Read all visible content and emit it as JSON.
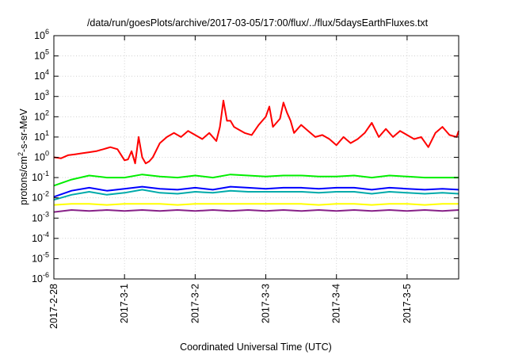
{
  "chart_data": {
    "type": "line",
    "title": "/data/run/goesPlots/archive/2017-03-05/17:00/flux/../flux/5daysEarthFluxes.txt",
    "xlabel": "Coordinated Universal Time (UTC)",
    "ylabel_parts": [
      "protons/cm",
      "2",
      "-s-sr-MeV"
    ],
    "y_scale": "log",
    "ylim_exponents": [
      -6,
      6
    ],
    "y_ticks": [
      {
        "base": "10",
        "exp": "-6",
        "value": -6
      },
      {
        "base": "10",
        "exp": "-5",
        "value": -5
      },
      {
        "base": "10",
        "exp": "-4",
        "value": -4
      },
      {
        "base": "10",
        "exp": "-3",
        "value": -3
      },
      {
        "base": "10",
        "exp": "-2",
        "value": -2
      },
      {
        "base": "10",
        "exp": "-1",
        "value": -1
      },
      {
        "base": "10",
        "exp": "0",
        "value": 0
      },
      {
        "base": "10",
        "exp": "1",
        "value": 1
      },
      {
        "base": "10",
        "exp": "2",
        "value": 2
      },
      {
        "base": "10",
        "exp": "3",
        "value": 3
      },
      {
        "base": "10",
        "exp": "4",
        "value": 4
      },
      {
        "base": "10",
        "exp": "5",
        "value": 5
      },
      {
        "base": "10",
        "exp": "6",
        "value": 6
      }
    ],
    "xlim_days": [
      0,
      5.73
    ],
    "x_ticks": [
      {
        "label": "2017-2-28",
        "day": 0
      },
      {
        "label": "2017-3-1",
        "day": 1
      },
      {
        "label": "2017-3-2",
        "day": 2
      },
      {
        "label": "2017-3-3",
        "day": 3
      },
      {
        "label": "2017-3-4",
        "day": 4
      },
      {
        "label": "2017-3-5",
        "day": 5
      }
    ],
    "grid": true,
    "series_colors": [
      "#ff0000",
      "#00ee00",
      "#00aaaa",
      "#0000ff",
      "#ffff00",
      "#882288"
    ],
    "series": [
      {
        "color": "#ff0000",
        "x": [
          0,
          0.1,
          0.2,
          0.3,
          0.4,
          0.5,
          0.6,
          0.7,
          0.75,
          0.8,
          0.9,
          1.0,
          1.05,
          1.1,
          1.15,
          1.2,
          1.25,
          1.3,
          1.35,
          1.4,
          1.5,
          1.6,
          1.7,
          1.8,
          1.9,
          2.0,
          2.1,
          2.2,
          2.3,
          2.35,
          2.4,
          2.45,
          2.5,
          2.55,
          2.6,
          2.7,
          2.8,
          2.9,
          3.0,
          3.05,
          3.1,
          3.2,
          3.25,
          3.3,
          3.35,
          3.4,
          3.5,
          3.6,
          3.7,
          3.8,
          3.9,
          4.0,
          4.1,
          4.2,
          4.3,
          4.4,
          4.5,
          4.6,
          4.7,
          4.8,
          4.9,
          5.0,
          5.1,
          5.2,
          5.3,
          5.4,
          5.5,
          5.6,
          5.7,
          5.73
        ],
        "log10_values": [
          0.0,
          -0.05,
          0.1,
          0.15,
          0.2,
          0.25,
          0.3,
          0.4,
          0.45,
          0.5,
          0.4,
          -0.15,
          -0.1,
          0.3,
          -0.3,
          1.0,
          0.0,
          -0.3,
          -0.2,
          0.0,
          0.7,
          1.0,
          1.2,
          1.0,
          1.3,
          1.1,
          0.9,
          1.2,
          0.8,
          1.5,
          2.8,
          1.8,
          1.8,
          1.5,
          1.4,
          1.2,
          1.1,
          1.6,
          2.0,
          2.5,
          1.5,
          1.9,
          2.7,
          2.2,
          1.8,
          1.2,
          1.6,
          1.3,
          1.0,
          1.1,
          0.9,
          0.6,
          1.0,
          0.7,
          0.9,
          1.2,
          1.7,
          1.0,
          1.4,
          1.0,
          1.3,
          1.1,
          0.9,
          1.0,
          0.5,
          1.2,
          1.5,
          1.1,
          1.0,
          1.3
        ]
      },
      {
        "color": "#00ee00",
        "x": [
          0,
          0.25,
          0.5,
          0.75,
          1.0,
          1.25,
          1.5,
          1.75,
          2.0,
          2.25,
          2.5,
          2.75,
          3.0,
          3.25,
          3.5,
          3.75,
          4.0,
          4.25,
          4.5,
          4.75,
          5.0,
          5.25,
          5.5,
          5.73
        ],
        "log10_values": [
          -1.4,
          -1.1,
          -0.9,
          -1.0,
          -1.0,
          -0.85,
          -0.95,
          -1.0,
          -0.9,
          -1.0,
          -0.85,
          -0.9,
          -0.95,
          -0.9,
          -0.9,
          -0.95,
          -0.95,
          -0.9,
          -1.0,
          -0.9,
          -0.95,
          -1.0,
          -1.0,
          -1.0
        ]
      },
      {
        "color": "#00aaaa",
        "x": [
          0,
          0.25,
          0.5,
          0.75,
          1.0,
          1.25,
          1.5,
          1.75,
          2.0,
          2.25,
          2.5,
          2.75,
          3.0,
          3.25,
          3.5,
          3.75,
          4.0,
          4.25,
          4.5,
          4.75,
          5.0,
          5.25,
          5.5,
          5.73
        ],
        "log10_values": [
          -2.1,
          -1.85,
          -1.7,
          -1.85,
          -1.75,
          -1.6,
          -1.75,
          -1.8,
          -1.7,
          -1.75,
          -1.65,
          -1.7,
          -1.7,
          -1.7,
          -1.7,
          -1.75,
          -1.7,
          -1.7,
          -1.8,
          -1.7,
          -1.75,
          -1.8,
          -1.75,
          -1.8
        ]
      },
      {
        "color": "#0000ff",
        "x": [
          0,
          0.25,
          0.5,
          0.75,
          1.0,
          1.25,
          1.5,
          1.75,
          2.0,
          2.25,
          2.5,
          2.75,
          3.0,
          3.25,
          3.5,
          3.75,
          4.0,
          4.25,
          4.5,
          4.75,
          5.0,
          5.25,
          5.5,
          5.73
        ],
        "log10_values": [
          -1.95,
          -1.65,
          -1.5,
          -1.65,
          -1.55,
          -1.45,
          -1.55,
          -1.6,
          -1.5,
          -1.6,
          -1.45,
          -1.5,
          -1.55,
          -1.5,
          -1.5,
          -1.55,
          -1.5,
          -1.5,
          -1.6,
          -1.5,
          -1.55,
          -1.6,
          -1.55,
          -1.6
        ]
      },
      {
        "color": "#ffff00",
        "x": [
          0,
          0.25,
          0.5,
          0.75,
          1.0,
          1.25,
          1.5,
          1.75,
          2.0,
          2.25,
          2.5,
          2.75,
          3.0,
          3.25,
          3.5,
          3.75,
          4.0,
          4.25,
          4.5,
          4.75,
          5.0,
          5.25,
          5.5,
          5.73
        ],
        "log10_values": [
          -2.35,
          -2.3,
          -2.3,
          -2.35,
          -2.3,
          -2.3,
          -2.3,
          -2.35,
          -2.3,
          -2.3,
          -2.3,
          -2.3,
          -2.3,
          -2.3,
          -2.3,
          -2.35,
          -2.3,
          -2.3,
          -2.35,
          -2.3,
          -2.3,
          -2.35,
          -2.3,
          -2.3
        ]
      },
      {
        "color": "#882288",
        "x": [
          0,
          0.25,
          0.5,
          0.75,
          1.0,
          1.25,
          1.5,
          1.75,
          2.0,
          2.25,
          2.5,
          2.75,
          3.0,
          3.25,
          3.5,
          3.75,
          4.0,
          4.25,
          4.5,
          4.75,
          5.0,
          5.25,
          5.5,
          5.73
        ],
        "log10_values": [
          -2.7,
          -2.6,
          -2.65,
          -2.6,
          -2.65,
          -2.6,
          -2.65,
          -2.6,
          -2.65,
          -2.6,
          -2.65,
          -2.6,
          -2.65,
          -2.6,
          -2.65,
          -2.6,
          -2.65,
          -2.6,
          -2.65,
          -2.6,
          -2.65,
          -2.6,
          -2.65,
          -2.6
        ]
      }
    ]
  }
}
